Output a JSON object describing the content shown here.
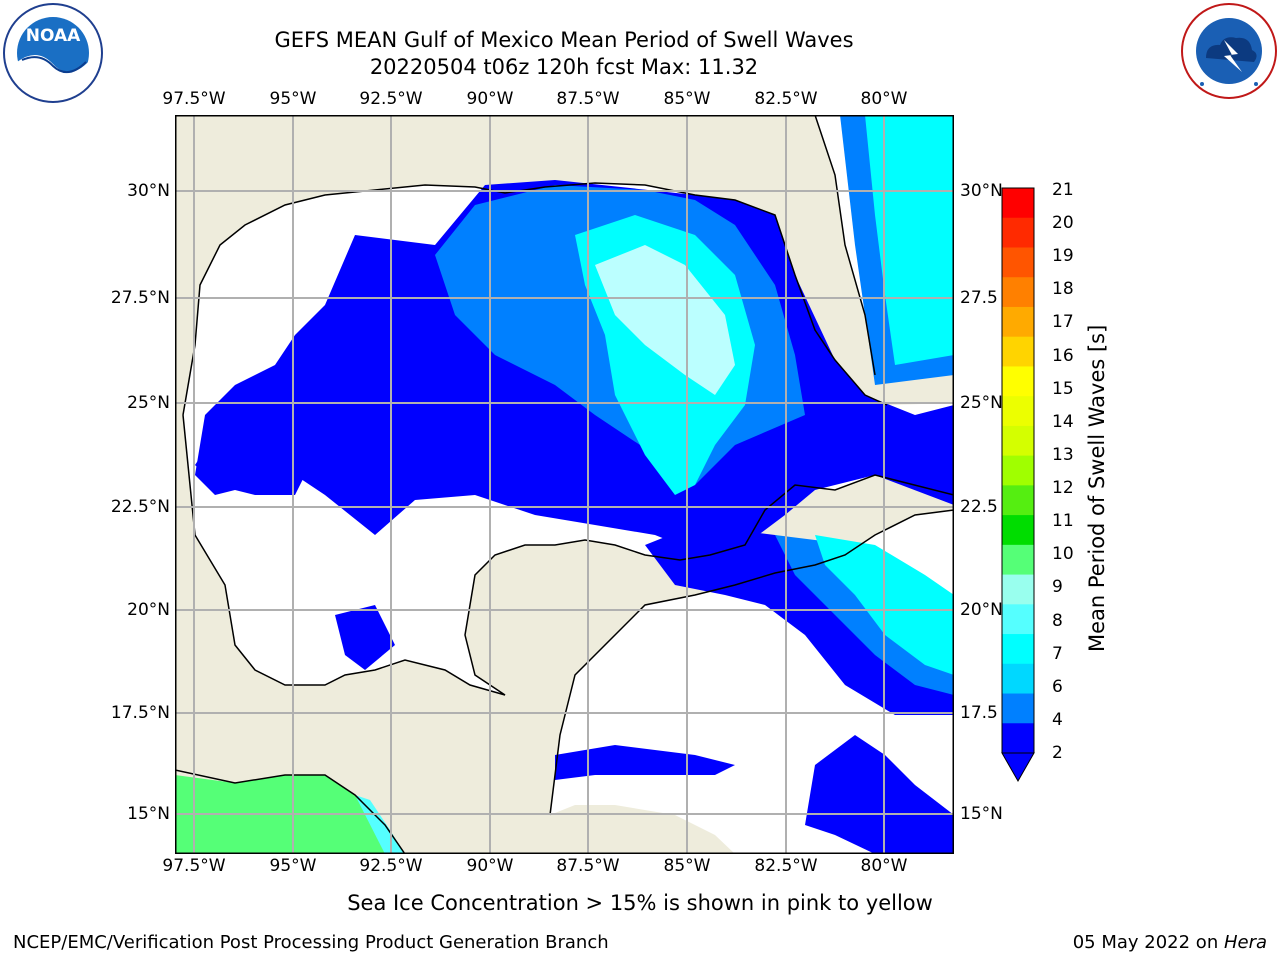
{
  "header": {
    "title_line1": "GEFS MEAN Gulf of Mexico Mean Period of Swell Waves",
    "title_line2": "20220504 t06z 120h fcst   Max: 11.32"
  },
  "logos": {
    "noaa": {
      "text": "NOAA",
      "ring_text": "NATIONAL OCEANIC AND ATMOSPHERIC ADMINISTRATION · U.S. DEPARTMENT OF COMMERCE"
    },
    "nws": {
      "ring_text": "NATIONAL WEATHER SERVICE"
    }
  },
  "map": {
    "lon_labels": [
      "97.5°W",
      "95°W",
      "92.5°W",
      "90°W",
      "87.5°W",
      "85°W",
      "82.5°W",
      "80°W"
    ],
    "lat_labels_left": [
      "30°N",
      "27.5°N",
      "25°N",
      "22.5°N",
      "20°N",
      "17.5°N",
      "15°N"
    ],
    "lat_labels_right": [
      "30°N",
      "27.5",
      "25°N",
      "22.5",
      "20°N",
      "17.5",
      "15°N"
    ],
    "colors": {
      "land": "#eeecdc",
      "ocean": "#ffffff",
      "coast": "#000000",
      "grid": "#b0b0b0"
    }
  },
  "colorbar": {
    "title": "Mean Period of Swell Waves [s]",
    "labels": [
      "21",
      "20",
      "19",
      "18",
      "17",
      "16",
      "15",
      "14",
      "13",
      "12",
      "11",
      "10",
      "9",
      "8",
      "7",
      "6",
      "4",
      "2"
    ],
    "colors_top_to_bottom": [
      "#ff0000",
      "#ff2a00",
      "#ff5500",
      "#ff8000",
      "#ffaa00",
      "#ffd400",
      "#ffff00",
      "#ecff00",
      "#d4ff00",
      "#a0ff00",
      "#55ee11",
      "#00dd00",
      "#55ff77",
      "#99ffee",
      "#55ffff",
      "#00ffff",
      "#00d8ff",
      "#0080ff",
      "#0000ff"
    ]
  },
  "ice_note": "Sea Ice Concentration > 15% is shown in pink to yellow",
  "footer": {
    "left": "NCEP/EMC/Verification Post Processing Product Generation Branch",
    "date": "05 May 2022 on ",
    "machine": "Hera"
  }
}
